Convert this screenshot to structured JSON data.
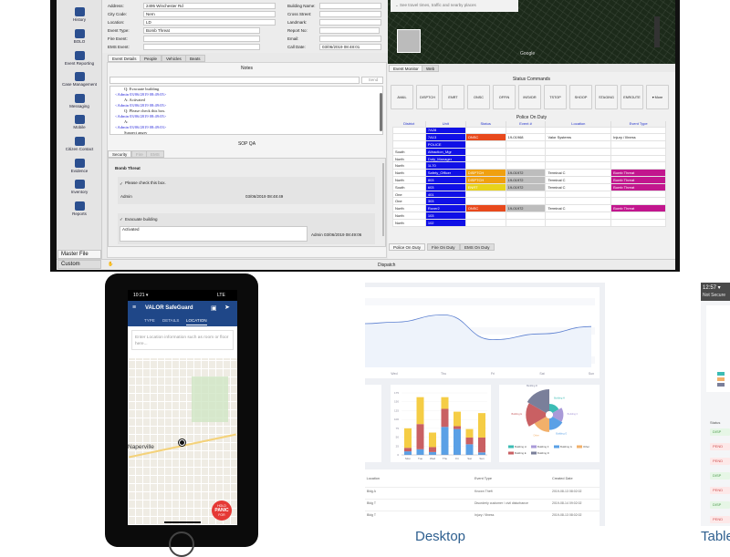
{
  "sidebar": {
    "items": [
      "History",
      "BOLO",
      "Event Reporting",
      "Case Management",
      "Messaging",
      "Mobile",
      "Citizen Contact",
      "Evidence",
      "Inventory",
      "Reports"
    ],
    "bottom_tabs": [
      "Master File",
      "Custom"
    ]
  },
  "form": {
    "left": [
      {
        "label": "Address:",
        "value": "2495 Winchester Rd"
      },
      {
        "label": "City Code:",
        "value": "Nern"
      },
      {
        "label": "Location:",
        "value": "LD"
      },
      {
        "label": "Event Type:",
        "value": "Bomb Threat"
      },
      {
        "label": "Fire Event:",
        "value": ""
      },
      {
        "label": "EMS Event:",
        "value": ""
      }
    ],
    "right": [
      {
        "label": "Building Name:",
        "value": ""
      },
      {
        "label": "Cross Street:",
        "value": ""
      },
      {
        "label": "Landmark:",
        "value": ""
      },
      {
        "label": "Report No:",
        "value": ""
      },
      {
        "label": "Email:",
        "value": ""
      },
      {
        "label": "Call Date:",
        "value": "03/06/2019 08:48:01"
      }
    ]
  },
  "detail_tabs": [
    "Event Details",
    "People",
    "Vehicles",
    "Beats"
  ],
  "notes": {
    "title": "Notes",
    "send": "Send",
    "log": [
      {
        "text": "Q: Evacuate building",
        "blue": false
      },
      {
        "text": "<Admin 03/06/2019 08:49:05>",
        "blue": true
      },
      {
        "text": "A: Activated",
        "blue": false
      },
      {
        "text": "<Admin 03/06/2019 08:49:05>",
        "blue": true
      },
      {
        "text": "Q: Please check this box.",
        "blue": false
      },
      {
        "text": "<Admin 03/06/2019 08:49:05>",
        "blue": true
      },
      {
        "text": "A:",
        "blue": false
      },
      {
        "text": "<Admin 03/06/2019 08:49:03>",
        "blue": true
      },
      {
        "text": "Suspect angry",
        "blue": false
      }
    ]
  },
  "sop": {
    "title": "SOP QA",
    "tabs": [
      "Security",
      "Fire",
      "EMS"
    ],
    "heading": "Bomb Threat",
    "item1": {
      "question": "Please check this box.",
      "user": "Admin",
      "date": "03/06/2019 08:48:49"
    },
    "item2": {
      "question": "Evacuate building",
      "answer": "Activated",
      "stamp": "Admin 03/06/2019 08:49:06"
    }
  },
  "map": {
    "search_placeholder": "See travel times, traffic and nearby places",
    "brand": "Google"
  },
  "monitor_tabs": [
    "Event Monitor",
    "Web"
  ],
  "status_commands": {
    "title": "Status Commands",
    "buttons": [
      "AVAIL",
      "DISPTCH",
      "ENRT",
      "ONSC",
      "OFFIN",
      "INSVDR",
      "TSTOP",
      "SHOOP",
      "STAGING",
      "ENROUTE",
      "▾ More"
    ]
  },
  "police_on_duty": {
    "title": "Police On Duty",
    "columns": [
      "District",
      "Unit",
      "Status",
      "Event #",
      "Location",
      "Event Type"
    ],
    "rows": [
      [
        "",
        "7A28",
        "",
        "",
        "",
        ""
      ],
      [
        "",
        "7A13",
        "ONSC",
        "19-01968",
        "Valor Systems",
        "Injury / Illness"
      ],
      [
        "",
        "POLICE",
        "",
        "",
        "",
        ""
      ],
      [
        "South",
        "Attraction_Mgr",
        "",
        "",
        "",
        ""
      ],
      [
        "North",
        "Duty_Manager",
        "",
        "",
        "",
        ""
      ],
      [
        "North",
        "1L70",
        "",
        "",
        "",
        ""
      ],
      [
        "North",
        "Safety_Officer",
        "DISPTCH",
        "19-01972",
        "Terminal C",
        "Bomb Threat"
      ],
      [
        "North",
        "803",
        "DISPTCH",
        "19-01972",
        "Terminal C",
        "Bomb Threat"
      ],
      [
        "South",
        "603",
        "ENRT",
        "19-01972",
        "Terminal C",
        "Bomb Threat"
      ],
      [
        "One",
        "401",
        "",
        "",
        "",
        ""
      ],
      [
        "One",
        "303",
        "",
        "",
        "",
        ""
      ],
      [
        "North",
        "Rover2",
        "ONSC",
        "19-01972",
        "Terminal C",
        "Bomb Threat"
      ],
      [
        "North",
        "103",
        "",
        "",
        "",
        ""
      ],
      [
        "North",
        "102",
        "",
        "",
        "",
        ""
      ]
    ],
    "bottom_tabs": [
      "Police On Duty",
      "Fire On Duty",
      "EMS On Duty"
    ],
    "colors": {
      "unit": "#1010e6",
      "ONSC": "#e8491c",
      "DISPTCH": "#f0a010",
      "ENRT": "#e8d21a",
      "event": "#bdbdbd",
      "bomb": "#c2168e"
    }
  },
  "statusbar": {
    "label": "Dispatch"
  },
  "phone": {
    "time": "10:21 ▾",
    "signal": "LTE",
    "app_title": "VALOR SafeGuard",
    "tabs": [
      "TYPE",
      "DETAILS",
      "LOCATION"
    ],
    "active_tab": "LOCATION",
    "location_placeholder": "Enter Location information such as room or floor here...",
    "map_city": "Naperville",
    "panic": [
      "HOLD",
      "PANIC",
      "FOR"
    ],
    "header_color": "#1f4788",
    "panic_color": "#e53935"
  },
  "desktop": {
    "caption": "Desktop",
    "line_chart": {
      "type": "line",
      "x": [
        "Wed",
        "Thu",
        "Fri",
        "Sat",
        "Sun"
      ],
      "values": [
        62,
        72,
        38,
        46,
        56
      ],
      "ylim": [
        0,
        100
      ]
    },
    "bar_chart": {
      "type": "bar",
      "stacked": true,
      "categories": [
        "Mon",
        "Tue",
        "Wed",
        "Thu",
        "Fri",
        "Sat",
        "Sun"
      ],
      "yticks": [
        "0",
        "25",
        "50",
        "75",
        "100",
        "125",
        "150",
        "175"
      ],
      "ylim": [
        0,
        175
      ],
      "series": [
        {
          "color": "#5aa0e6",
          "values": [
            10,
            16,
            8,
            79,
            73,
            30,
            7
          ]
        },
        {
          "color": "#c96063",
          "values": [
            10,
            71,
            14,
            51,
            8,
            19,
            42
          ]
        },
        {
          "color": "#f5cd45",
          "values": [
            55,
            76,
            41,
            33,
            41,
            24,
            69
          ]
        }
      ]
    },
    "rose_chart": {
      "type": "pie",
      "labels": [
        "Building H",
        "Building F",
        "Building G",
        "Other",
        "Building E",
        "Building D"
      ],
      "values": [
        14,
        20,
        22,
        26,
        38,
        42
      ],
      "colors": [
        "#3cbcb4",
        "#a99ad8",
        "#5aa0e6",
        "#f2b06a",
        "#c96063",
        "#7a7f9a"
      ]
    },
    "table": {
      "columns": [
        "Location",
        "Event Type",
        "Created Date"
      ],
      "rows": [
        [
          "Bldg A",
          "Known Theft",
          "2019-08-13 08:02:02"
        ],
        [
          "Bldg T",
          "Disorderly customer / civil disturbance",
          "2019-08-14 09:02:02"
        ],
        [
          "Bldg T",
          "Injury / Illness",
          "2019-08-13 08:02:02"
        ]
      ]
    }
  },
  "tablet": {
    "caption": "Tablet",
    "time": "12:57 ▾",
    "browser": "Not Secure",
    "status_header": "Status",
    "statuses": [
      "DISP",
      "PEND",
      "PEND",
      "DISP",
      "PEND",
      "DISP",
      "PEND"
    ]
  }
}
